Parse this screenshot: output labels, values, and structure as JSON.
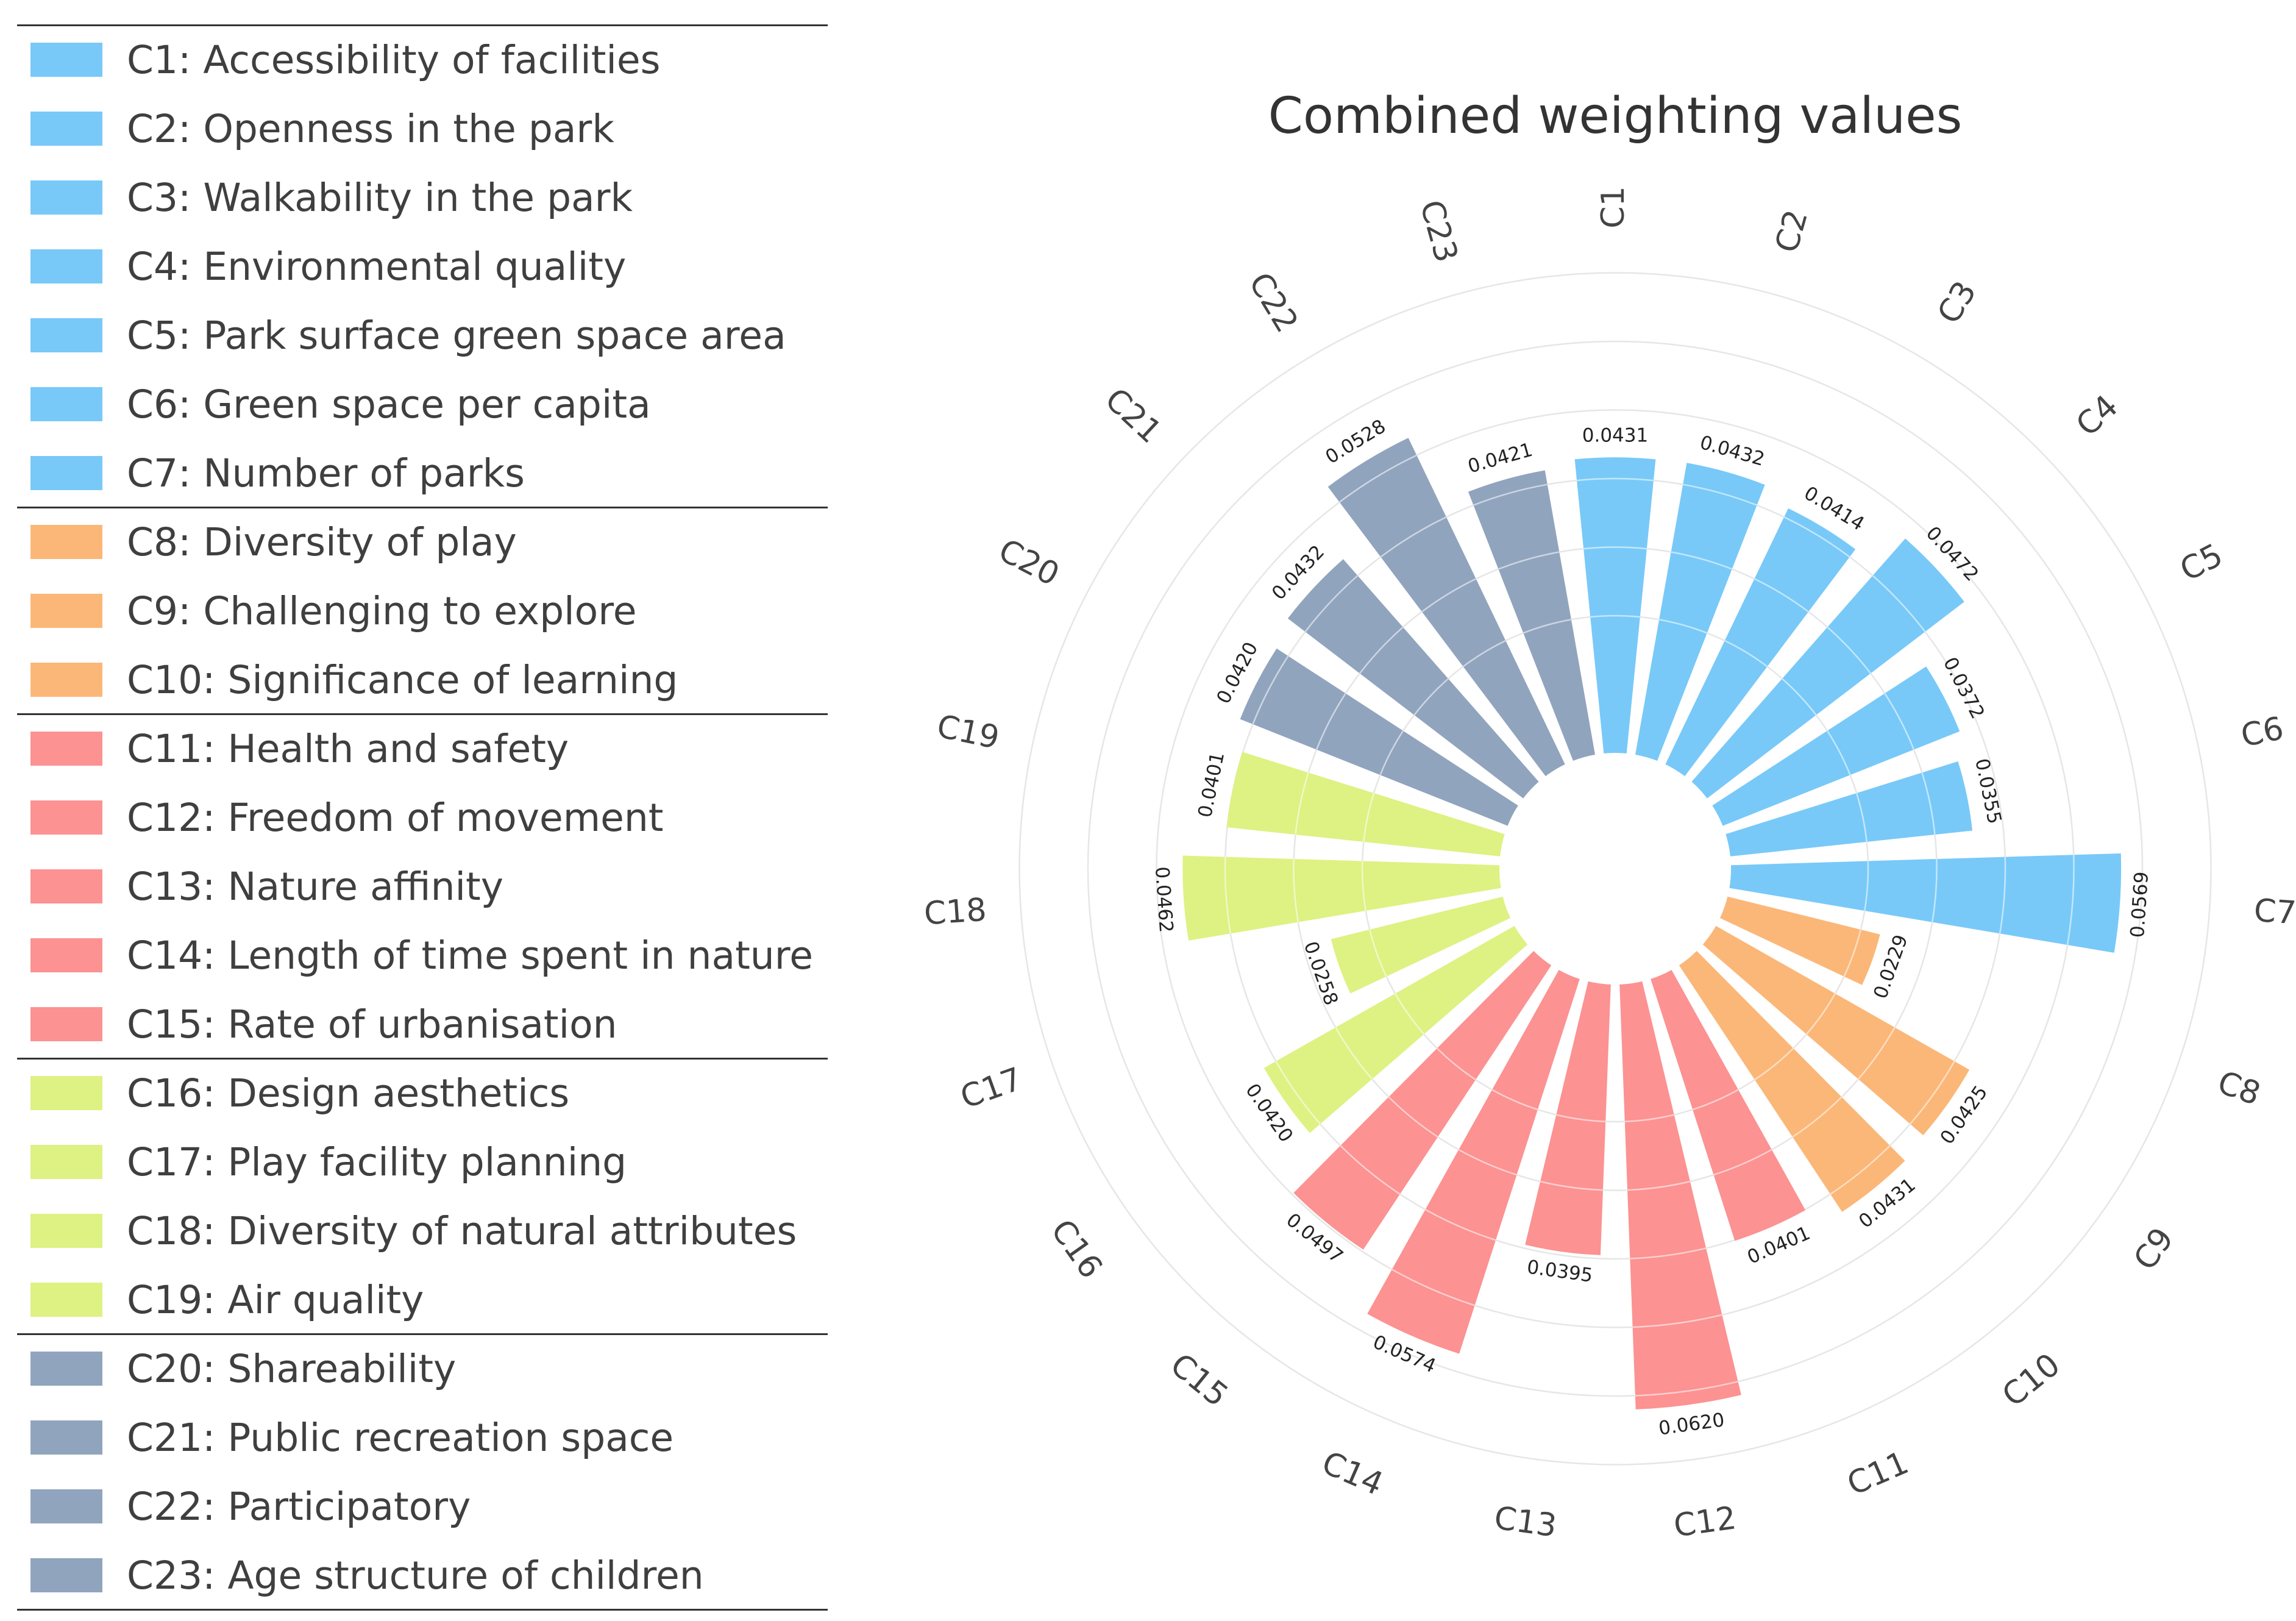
{
  "chart_data": {
    "type": "bar",
    "layout": "polar",
    "title": "Combined weighting values",
    "categories": [
      "C1",
      "C2",
      "C3",
      "C4",
      "C5",
      "C6",
      "C7",
      "C8",
      "C9",
      "C10",
      "C11",
      "C12",
      "C13",
      "C14",
      "C15",
      "C16",
      "C17",
      "C18",
      "C19",
      "C20",
      "C21",
      "C22",
      "C23"
    ],
    "values": [
      0.0431,
      0.0432,
      0.0414,
      0.0472,
      0.0372,
      0.0355,
      0.0569,
      0.0229,
      0.0425,
      0.0431,
      0.0401,
      0.062,
      0.0395,
      0.0574,
      0.0497,
      0.042,
      0.0258,
      0.0462,
      0.0401,
      0.042,
      0.0432,
      0.0528,
      0.0421
    ],
    "value_labels": [
      "0.0431",
      "0.0432",
      "0.0414",
      "0.0472",
      "0.0372",
      "0.0355",
      "0.0569",
      "0.0229",
      "0.0425",
      "0.0431",
      "0.0401",
      "0.0620",
      "0.0395",
      "0.0574",
      "0.0497",
      "0.0420",
      "0.0258",
      "0.0462",
      "0.0401",
      "0.0420",
      "0.0432",
      "0.0528",
      "0.0421"
    ],
    "groups": [
      0,
      0,
      0,
      0,
      0,
      0,
      0,
      1,
      1,
      1,
      2,
      2,
      2,
      2,
      2,
      3,
      3,
      3,
      3,
      4,
      4,
      4,
      4
    ],
    "group_colors": [
      "#78c9f8",
      "#fbb778",
      "#fc9292",
      "#def183",
      "#91a4be"
    ],
    "ylim": [
      0,
      0.072
    ],
    "grid": true,
    "legend": "left",
    "legend_entries": [
      "C1: Accessibility of facilities",
      "C2: Openness in the park",
      "C3: Walkability in the park",
      "C4: Environmental quality",
      "C5: Park surface green space area",
      "C6: Green space per capita",
      "C7: Number of parks",
      "C8: Diversity of play",
      "C9: Challenging to explore",
      "C10: Significance of learning",
      "C11: Health and safety",
      "C12: Freedom of movement",
      "C13: Nature affinity",
      "C14: Length of time spent in nature",
      "C15: Rate of urbanisation",
      "C16: Design aesthetics",
      "C17: Play facility planning",
      "C18: Diversity of natural attributes",
      "C19: Air quality",
      "C20: Shareability",
      "C21: Public recreation space",
      "C22: Participatory",
      "C23: Age structure of children"
    ]
  }
}
